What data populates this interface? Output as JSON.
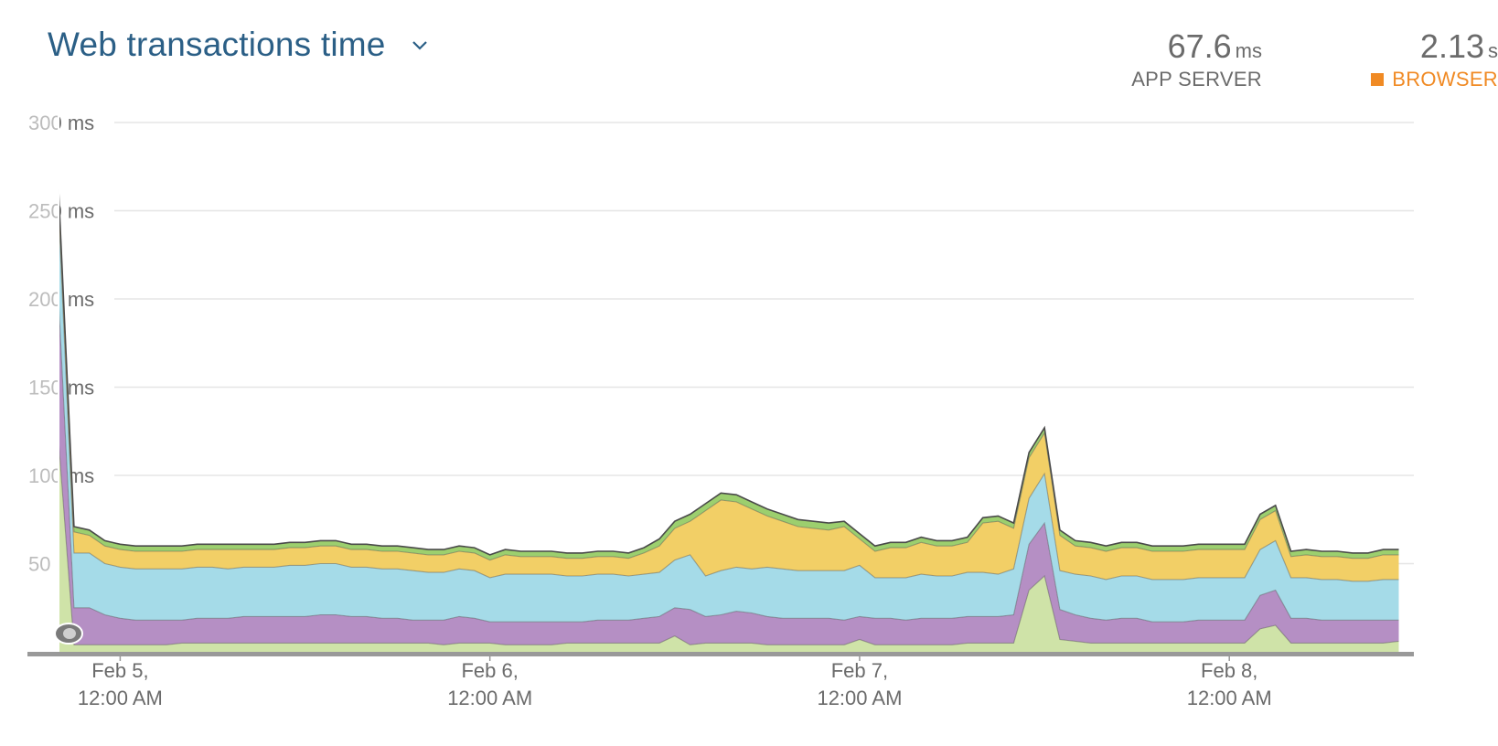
{
  "header": {
    "title": "Web transactions time",
    "app_server": {
      "value": "67.6",
      "unit": "ms",
      "label": "APP SERVER"
    },
    "browser": {
      "value": "2.13",
      "unit": "s",
      "label": "BROWSER",
      "color": "#f08a24"
    }
  },
  "chart_data": {
    "type": "area",
    "stacked": true,
    "y_ticks": [
      "300 ms",
      "250 ms",
      "200 ms",
      "150 ms",
      "100 ms",
      "50 ms"
    ],
    "ylim": [
      0,
      300
    ],
    "x_ticks": [
      {
        "line1": "Feb 5,",
        "line2": "12:00 AM",
        "t": 4
      },
      {
        "line1": "Feb 6,",
        "line2": "12:00 AM",
        "t": 28
      },
      {
        "line1": "Feb 7,",
        "line2": "12:00 AM",
        "t": 52
      },
      {
        "line1": "Feb 8,",
        "line2": "12:00 AM",
        "t": 76
      }
    ],
    "xlim": [
      -2.02,
      87.98
    ],
    "x_unit": "hours since Feb 4, 8:00 PM",
    "grid": true,
    "colors": {
      "green_light": "#cfe3a8",
      "purple": "#b58fc4",
      "blue": "#a5dbe8",
      "yellow": "#f2cf66",
      "green_top": "#9ccf6e",
      "outline": "#4a4a4a"
    },
    "x": [
      0,
      1,
      2,
      3,
      4,
      5,
      6,
      7,
      8,
      9,
      10,
      11,
      12,
      13,
      14,
      15,
      16,
      17,
      18,
      19,
      20,
      21,
      22,
      23,
      24,
      25,
      26,
      27,
      28,
      29,
      30,
      31,
      32,
      33,
      34,
      35,
      36,
      37,
      38,
      39,
      40,
      41,
      42,
      43,
      44,
      45,
      46,
      47,
      48,
      49,
      50,
      51,
      52,
      53,
      54,
      55,
      56,
      57,
      58,
      59,
      60,
      61,
      62,
      63,
      64,
      65,
      66,
      67,
      68,
      69,
      70,
      71,
      72,
      73,
      74,
      75,
      76,
      77,
      78,
      79,
      80,
      81,
      82,
      83,
      84,
      85,
      86,
      87
    ],
    "series": [
      {
        "values": [
          120,
          4,
          4,
          4,
          4,
          4,
          4,
          4,
          5,
          5,
          5,
          5,
          5,
          5,
          5,
          5,
          5,
          5,
          5,
          5,
          5,
          5,
          5,
          5,
          5,
          4,
          5,
          5,
          5,
          4,
          4,
          4,
          4,
          5,
          5,
          5,
          5,
          5,
          5,
          5,
          9,
          4,
          5,
          5,
          5,
          5,
          4,
          4,
          4,
          4,
          4,
          4,
          7,
          4,
          4,
          4,
          4,
          4,
          4,
          5,
          5,
          5,
          5,
          35,
          43,
          7,
          6,
          5,
          5,
          5,
          5,
          5,
          5,
          5,
          5,
          5,
          5,
          5,
          13,
          15,
          5,
          5,
          5,
          5,
          5,
          5,
          5,
          6
        ]
      },
      {
        "values": [
          80,
          21,
          21,
          17,
          15,
          14,
          14,
          14,
          13,
          14,
          14,
          14,
          15,
          15,
          15,
          15,
          15,
          16,
          16,
          15,
          15,
          14,
          14,
          13,
          13,
          14,
          15,
          14,
          12,
          13,
          13,
          13,
          13,
          12,
          12,
          13,
          13,
          13,
          14,
          15,
          16,
          20,
          15,
          16,
          18,
          17,
          16,
          15,
          15,
          15,
          15,
          14,
          13,
          15,
          15,
          14,
          15,
          15,
          15,
          15,
          15,
          15,
          16,
          26,
          30,
          17,
          15,
          14,
          13,
          14,
          14,
          12,
          12,
          12,
          13,
          13,
          13,
          13,
          19,
          20,
          14,
          14,
          13,
          13,
          13,
          13,
          13,
          12
        ]
      },
      {
        "values": [
          50,
          31,
          31,
          29,
          29,
          29,
          29,
          29,
          29,
          29,
          29,
          28,
          28,
          28,
          28,
          29,
          29,
          29,
          29,
          28,
          28,
          28,
          28,
          28,
          27,
          27,
          27,
          27,
          25,
          27,
          27,
          27,
          27,
          26,
          26,
          26,
          26,
          25,
          25,
          25,
          27,
          31,
          23,
          25,
          25,
          25,
          28,
          28,
          27,
          27,
          27,
          28,
          29,
          23,
          23,
          24,
          25,
          24,
          24,
          25,
          25,
          24,
          26,
          26,
          28,
          22,
          23,
          24,
          23,
          24,
          24,
          24,
          24,
          24,
          24,
          24,
          24,
          24,
          26,
          28,
          23,
          23,
          23,
          23,
          22,
          22,
          23,
          23
        ]
      },
      {
        "values": [
          10,
          12,
          10,
          10,
          10,
          10,
          10,
          10,
          10,
          10,
          10,
          11,
          10,
          10,
          10,
          10,
          10,
          10,
          10,
          10,
          10,
          10,
          10,
          10,
          10,
          10,
          10,
          10,
          10,
          11,
          10,
          10,
          10,
          10,
          10,
          10,
          10,
          10,
          12,
          15,
          18,
          19,
          37,
          40,
          37,
          34,
          29,
          27,
          25,
          24,
          23,
          25,
          15,
          15,
          17,
          17,
          18,
          17,
          17,
          17,
          28,
          30,
          23,
          23,
          23,
          20,
          16,
          16,
          16,
          16,
          16,
          16,
          16,
          16,
          16,
          16,
          16,
          16,
          17,
          17,
          12,
          13,
          13,
          13,
          13,
          13,
          14,
          14
        ]
      },
      {
        "values": [
          2,
          3,
          3,
          3,
          3,
          3,
          3,
          3,
          3,
          3,
          3,
          3,
          3,
          3,
          3,
          3,
          3,
          3,
          3,
          3,
          3,
          3,
          3,
          3,
          3,
          3,
          3,
          3,
          3,
          3,
          3,
          3,
          3,
          3,
          3,
          3,
          3,
          3,
          3,
          4,
          4,
          4,
          4,
          4,
          4,
          4,
          4,
          4,
          4,
          4,
          4,
          3,
          3,
          3,
          3,
          3,
          3,
          3,
          3,
          3,
          3,
          3,
          3,
          3,
          3,
          3,
          3,
          3,
          3,
          3,
          3,
          3,
          3,
          3,
          3,
          3,
          3,
          3,
          3,
          3,
          3,
          3,
          3,
          3,
          3,
          3,
          3,
          3
        ]
      }
    ]
  }
}
